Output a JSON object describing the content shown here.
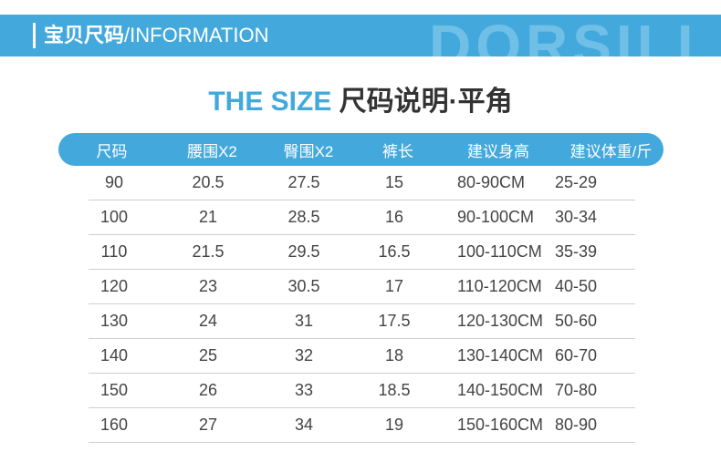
{
  "banner": {
    "title_cn": "宝贝尺码",
    "title_en": "/INFORMATION",
    "watermark": "DORSILI"
  },
  "heading": {
    "en": "THE SIZE",
    "cn": " 尺码说明·平角"
  },
  "table": {
    "headers": [
      "尺码",
      "腰围X2",
      "臀围X2",
      "裤长",
      "建议身高",
      "建议体重/斤"
    ],
    "rows": [
      [
        "90",
        "20.5",
        "27.5",
        "15",
        "80-90CM",
        "25-29"
      ],
      [
        "100",
        "21",
        "28.5",
        "16",
        "90-100CM",
        "30-34"
      ],
      [
        "110",
        "21.5",
        "29.5",
        "16.5",
        "100-110CM",
        "35-39"
      ],
      [
        "120",
        "23",
        "30.5",
        "17",
        "110-120CM",
        "40-50"
      ],
      [
        "130",
        "24",
        "31",
        "17.5",
        "120-130CM",
        "50-60"
      ],
      [
        "140",
        "25",
        "32",
        "18",
        "130-140CM",
        "60-70"
      ],
      [
        "150",
        "26",
        "33",
        "18.5",
        "140-150CM",
        "70-80"
      ],
      [
        "160",
        "27",
        "34",
        "19",
        "150-160CM",
        "80-90"
      ]
    ]
  },
  "colors": {
    "accent": "#43a9dd",
    "text": "#444444",
    "divider": "#cfcfcf"
  }
}
